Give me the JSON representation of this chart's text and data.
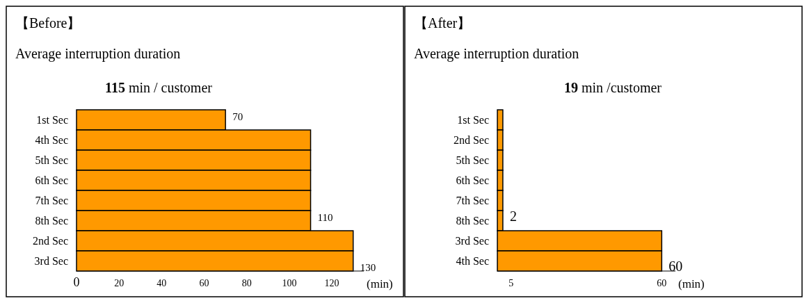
{
  "chart_data": [
    {
      "type": "bar",
      "orientation": "horizontal",
      "title": "【Before】",
      "subtitle": "Average interruption duration",
      "annotations": [
        "115 min / customer"
      ],
      "xlabel": "(min)",
      "categories": [
        "1st Sec",
        "4th Sec",
        "5th Sec",
        "6th Sec",
        "7th Sec",
        "8th Sec",
        "2nd Sec",
        "3rd Sec"
      ],
      "values": [
        70,
        110,
        110,
        110,
        110,
        110,
        130,
        130
      ],
      "color": "#ff9900",
      "value_labels": [
        "70",
        null,
        null,
        null,
        null,
        "110",
        null,
        "130"
      ],
      "xlim": [
        0,
        135
      ],
      "xticks": [
        0,
        20,
        40,
        60,
        80,
        100,
        120
      ],
      "grid": false
    },
    {
      "type": "bar",
      "orientation": "horizontal",
      "title": "【After】",
      "subtitle": "Average interruption duration",
      "annotations": [
        "19 min /customer"
      ],
      "xlabel": "(min)",
      "categories": [
        "1st Sec",
        "2nd Sec",
        "5th Sec",
        "6th Sec",
        "7th Sec",
        "8th Sec",
        "3rd Sec",
        "4th Sec"
      ],
      "values": [
        2,
        2,
        2,
        2,
        2,
        2,
        60,
        60
      ],
      "color": "#ff9900",
      "value_labels": [
        null,
        null,
        null,
        null,
        null,
        "2",
        null,
        "60"
      ],
      "xlim": [
        0,
        65
      ],
      "xticks": [
        5,
        60
      ],
      "grid": false
    }
  ]
}
